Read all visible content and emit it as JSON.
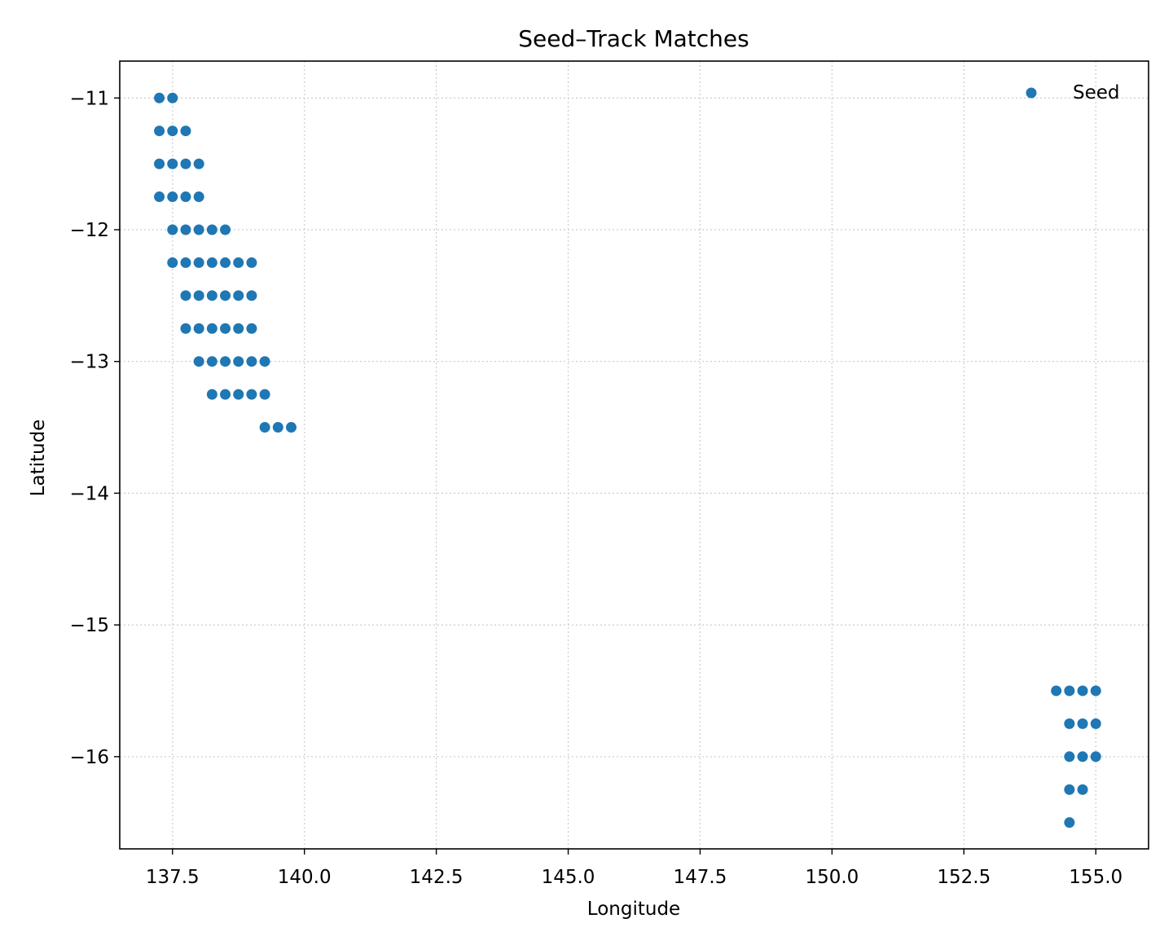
{
  "chart_data": {
    "type": "scatter",
    "title": "Seed–Track Matches",
    "xlabel": "Longitude",
    "ylabel": "Latitude",
    "xlim": [
      136.5,
      156.0
    ],
    "ylim": [
      -16.7,
      -10.72
    ],
    "xticks": [
      137.5,
      140.0,
      142.5,
      145.0,
      147.5,
      150.0,
      152.5,
      155.0
    ],
    "xtick_labels": [
      "137.5",
      "140.0",
      "142.5",
      "145.0",
      "147.5",
      "150.0",
      "152.5",
      "155.0"
    ],
    "yticks": [
      -11,
      -12,
      -13,
      -14,
      -15,
      -16
    ],
    "ytick_labels": [
      "−11",
      "−12",
      "−13",
      "−14",
      "−15",
      "−16"
    ],
    "grid": true,
    "legend_position": "top-right",
    "color": "#1f77b4",
    "series": [
      {
        "name": "Seed",
        "points": [
          [
            137.25,
            -11.0
          ],
          [
            137.5,
            -11.0
          ],
          [
            137.25,
            -11.25
          ],
          [
            137.5,
            -11.25
          ],
          [
            137.75,
            -11.25
          ],
          [
            137.25,
            -11.5
          ],
          [
            137.5,
            -11.5
          ],
          [
            137.75,
            -11.5
          ],
          [
            138.0,
            -11.5
          ],
          [
            137.25,
            -11.75
          ],
          [
            137.5,
            -11.75
          ],
          [
            137.75,
            -11.75
          ],
          [
            138.0,
            -11.75
          ],
          [
            137.5,
            -12.0
          ],
          [
            137.75,
            -12.0
          ],
          [
            138.0,
            -12.0
          ],
          [
            138.25,
            -12.0
          ],
          [
            138.5,
            -12.0
          ],
          [
            137.5,
            -12.25
          ],
          [
            137.75,
            -12.25
          ],
          [
            138.0,
            -12.25
          ],
          [
            138.25,
            -12.25
          ],
          [
            138.5,
            -12.25
          ],
          [
            138.75,
            -12.25
          ],
          [
            139.0,
            -12.25
          ],
          [
            137.75,
            -12.5
          ],
          [
            138.0,
            -12.5
          ],
          [
            138.25,
            -12.5
          ],
          [
            138.5,
            -12.5
          ],
          [
            138.75,
            -12.5
          ],
          [
            139.0,
            -12.5
          ],
          [
            137.75,
            -12.75
          ],
          [
            138.0,
            -12.75
          ],
          [
            138.25,
            -12.75
          ],
          [
            138.5,
            -12.75
          ],
          [
            138.75,
            -12.75
          ],
          [
            139.0,
            -12.75
          ],
          [
            138.0,
            -13.0
          ],
          [
            138.25,
            -13.0
          ],
          [
            138.5,
            -13.0
          ],
          [
            138.75,
            -13.0
          ],
          [
            139.0,
            -13.0
          ],
          [
            139.25,
            -13.0
          ],
          [
            138.25,
            -13.25
          ],
          [
            138.5,
            -13.25
          ],
          [
            138.75,
            -13.25
          ],
          [
            139.0,
            -13.25
          ],
          [
            139.25,
            -13.25
          ],
          [
            139.25,
            -13.5
          ],
          [
            139.5,
            -13.5
          ],
          [
            139.75,
            -13.5
          ],
          [
            154.25,
            -15.5
          ],
          [
            154.5,
            -15.5
          ],
          [
            154.75,
            -15.5
          ],
          [
            155.0,
            -15.5
          ],
          [
            154.5,
            -15.75
          ],
          [
            154.75,
            -15.75
          ],
          [
            155.0,
            -15.75
          ],
          [
            154.5,
            -16.0
          ],
          [
            154.75,
            -16.0
          ],
          [
            155.0,
            -16.0
          ],
          [
            154.5,
            -16.25
          ],
          [
            154.75,
            -16.25
          ],
          [
            154.5,
            -16.5
          ]
        ]
      }
    ]
  }
}
